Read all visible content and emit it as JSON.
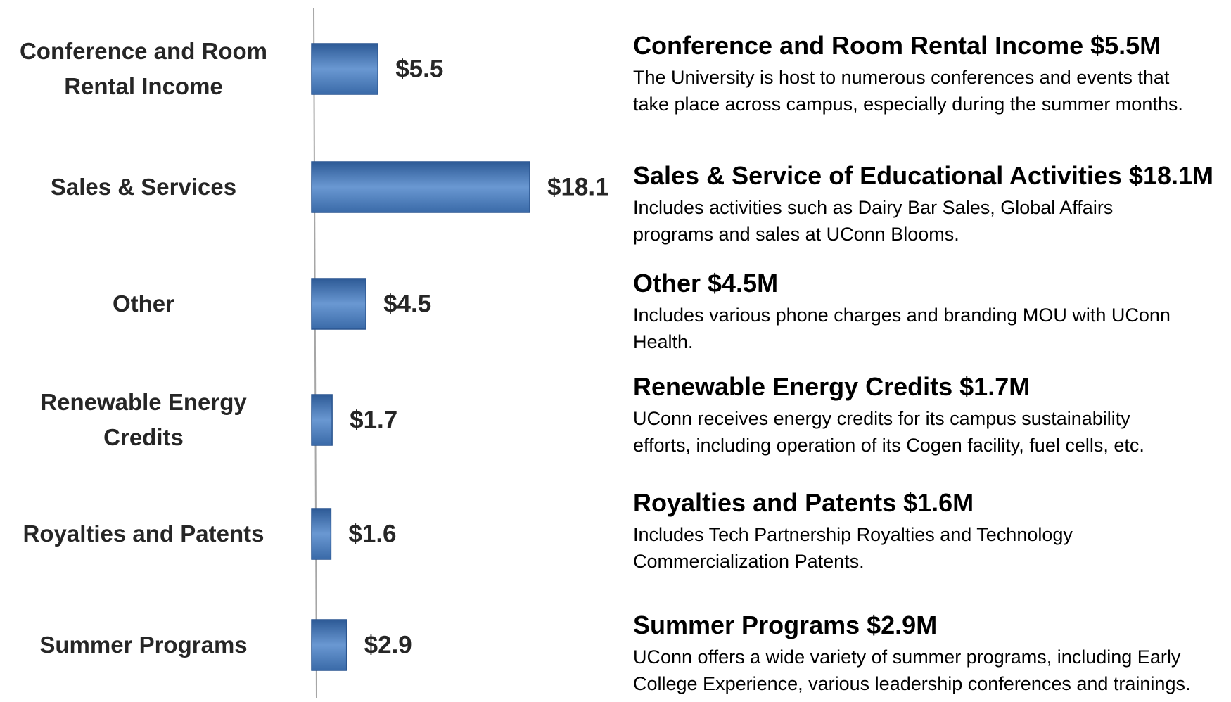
{
  "chart_data": {
    "type": "barh",
    "categories": [
      "Conference and Room Rental Income",
      "Sales & Services",
      "Other",
      "Renewable Energy Credits",
      "Royalties and Patents",
      "Summer Programs"
    ],
    "values": [
      5.5,
      18.1,
      4.5,
      1.7,
      1.6,
      2.9
    ],
    "value_labels": [
      "$5.5",
      "$18.1",
      "$4.5",
      "$1.7",
      "$1.6",
      "$2.9"
    ],
    "color": "#4a7bbd"
  },
  "descriptions": [
    {
      "title": "Conference and Room Rental Income $5.5M",
      "lines": [
        "The University is host to numerous conferences and events that",
        "take place across campus, especially during the summer months."
      ]
    },
    {
      "title": "Sales & Service of Educational Activities $18.1M",
      "lines": [
        "Includes activities such as Dairy Bar Sales, Global Affairs",
        "programs and sales at UConn Blooms."
      ]
    },
    {
      "title": "Other $4.5M",
      "lines": [
        "Includes various phone charges and branding MOU with UConn",
        "Health."
      ]
    },
    {
      "title": "Renewable Energy Credits $1.7M",
      "lines": [
        "UConn receives energy credits for its campus sustainability",
        "efforts, including operation of its Cogen facility, fuel cells, etc."
      ]
    },
    {
      "title": "Royalties and Patents $1.6M",
      "lines": [
        "Includes Tech Partnership Royalties and Technology",
        "Commercialization Patents."
      ]
    },
    {
      "title": "Summer Programs $2.9M",
      "lines": [
        "UConn offers a wide variety of summer programs, including Early",
        "College Experience, various leadership conferences and trainings."
      ]
    }
  ]
}
